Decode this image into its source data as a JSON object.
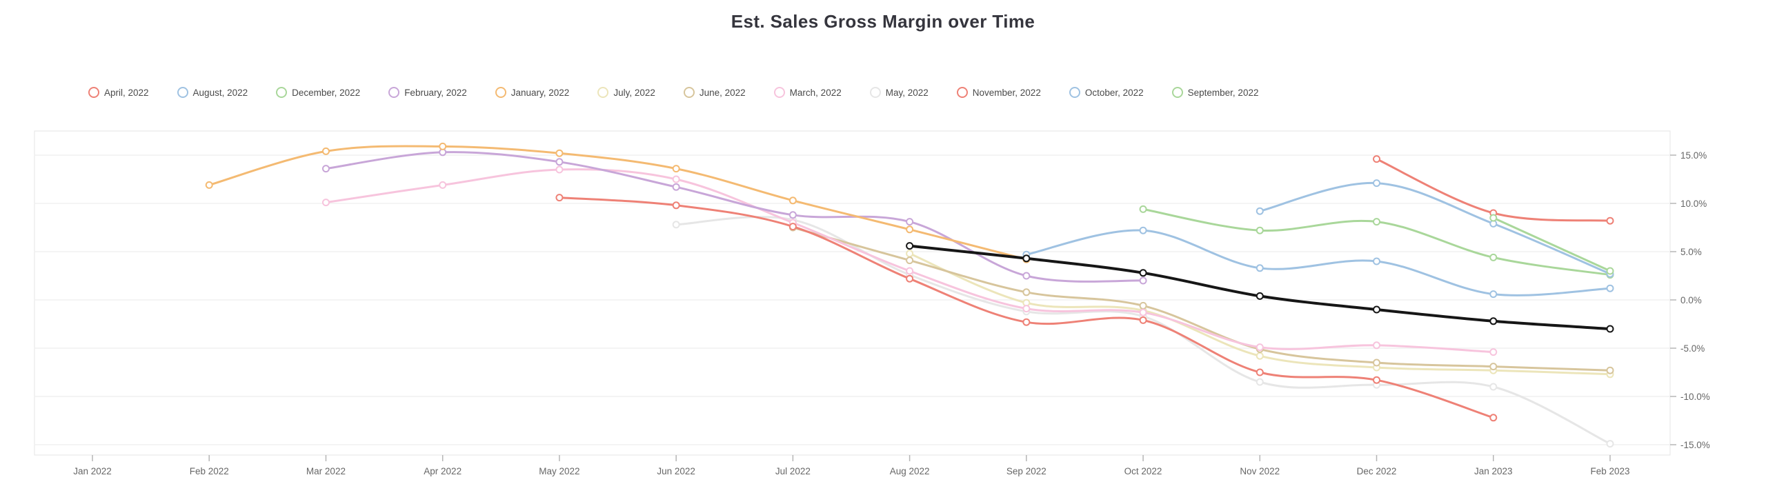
{
  "chart_data": {
    "type": "line",
    "title": "Est. Sales Gross Margin over Time",
    "xlabel": "",
    "ylabel": "",
    "x_categories": [
      "Jan 2022",
      "Feb 2022",
      "Mar 2022",
      "Apr 2022",
      "May 2022",
      "Jun 2022",
      "Jul 2022",
      "Aug 2022",
      "Sep 2022",
      "Oct 2022",
      "Nov 2022",
      "Dec 2022",
      "Jan 2023",
      "Feb 2023"
    ],
    "y_axis": {
      "side": "right",
      "unit": "%",
      "min": -15,
      "max": 15,
      "gridlines": [
        {
          "value": 15,
          "label": "15.0%"
        },
        {
          "value": 10,
          "label": "10.0%"
        },
        {
          "value": 5,
          "label": "5.0%"
        },
        {
          "value": 0,
          "label": "0.0%"
        },
        {
          "value": -5,
          "label": "-5.0%"
        },
        {
          "value": -10,
          "label": "-10.0%"
        },
        {
          "value": -15,
          "label": "-15.0%"
        }
      ]
    },
    "legend_position": "top-left",
    "grid": true,
    "legend": [
      {
        "label": "April, 2022",
        "color": "#ee8176"
      },
      {
        "label": "August, 2022",
        "color": "#9fc2e2"
      },
      {
        "label": "December, 2022",
        "color": "#a9d79a"
      },
      {
        "label": "February, 2022",
        "color": "#c8a6d8"
      },
      {
        "label": "January, 2022",
        "color": "#f4ba72"
      },
      {
        "label": "July, 2022",
        "color": "#ece5ba"
      },
      {
        "label": "June, 2022",
        "color": "#d7c59c"
      },
      {
        "label": "March, 2022",
        "color": "#f7c4dd"
      },
      {
        "label": "May, 2022",
        "color": "#e6e6e6"
      },
      {
        "label": "November, 2022",
        "color": "#ee8176"
      },
      {
        "label": "October, 2022",
        "color": "#9fc2e2"
      },
      {
        "label": "September, 2022",
        "color": "#a9d79a"
      }
    ],
    "series": [
      {
        "name": "May, 2022",
        "color": "#e6e6e6",
        "width": 3,
        "values": [
          null,
          null,
          null,
          null,
          null,
          7.8,
          8.3,
          2.6,
          -1.2,
          -1.7,
          -8.5,
          -8.8,
          -9.0,
          -14.9
        ]
      },
      {
        "name": "July, 2022",
        "color": "#ece5ba",
        "width": 3,
        "values": [
          null,
          null,
          null,
          null,
          null,
          null,
          null,
          4.8,
          -0.3,
          -1.1,
          -5.8,
          -7.0,
          -7.3,
          -7.7
        ]
      },
      {
        "name": "June, 2022",
        "color": "#d7c59c",
        "width": 3,
        "values": [
          null,
          null,
          null,
          null,
          null,
          null,
          7.5,
          4.1,
          0.8,
          -0.6,
          -5.1,
          -6.5,
          -6.9,
          -7.3
        ]
      },
      {
        "name": "March, 2022",
        "color": "#f7c4dd",
        "width": 3,
        "values": [
          null,
          null,
          10.1,
          11.9,
          13.5,
          12.5,
          8.0,
          3.0,
          -0.9,
          -1.3,
          -4.9,
          -4.7,
          -5.4,
          null
        ]
      },
      {
        "name": "February, 2022",
        "color": "#c8a6d8",
        "width": 3,
        "values": [
          null,
          null,
          13.6,
          15.3,
          14.3,
          11.7,
          8.8,
          8.1,
          2.5,
          2.0,
          null,
          null,
          null,
          null
        ]
      },
      {
        "name": "January, 2022",
        "color": "#f4ba72",
        "width": 3,
        "values": [
          null,
          11.9,
          15.4,
          15.9,
          15.2,
          13.6,
          10.3,
          7.3,
          4.2,
          null,
          null,
          null,
          null,
          null
        ]
      },
      {
        "name": "April, 2022",
        "color": "#ee8176",
        "width": 3,
        "values": [
          null,
          null,
          null,
          null,
          10.6,
          9.8,
          7.6,
          2.2,
          -2.3,
          -2.1,
          -7.5,
          -8.3,
          -12.2,
          null
        ]
      },
      {
        "name": "August, 2022",
        "color": "#9fc2e2",
        "width": 3,
        "values": [
          null,
          null,
          null,
          null,
          null,
          null,
          null,
          null,
          4.7,
          7.2,
          3.3,
          4.0,
          0.6,
          1.2
        ]
      },
      {
        "name": "September, 2022",
        "color": "#a9d79a",
        "width": 3,
        "values": [
          null,
          null,
          null,
          null,
          null,
          null,
          null,
          null,
          null,
          9.4,
          7.2,
          8.1,
          4.4,
          2.6
        ]
      },
      {
        "name": "October, 2022",
        "color": "#9fc2e2",
        "width": 3,
        "values": [
          null,
          null,
          null,
          null,
          null,
          null,
          null,
          null,
          null,
          null,
          9.2,
          12.1,
          7.9,
          2.7
        ]
      },
      {
        "name": "November, 2022",
        "color": "#ee8176",
        "width": 3,
        "values": [
          null,
          null,
          null,
          null,
          null,
          null,
          null,
          null,
          null,
          null,
          null,
          14.6,
          9.0,
          8.2
        ]
      },
      {
        "name": "December, 2022",
        "color": "#a9d79a",
        "width": 3,
        "values": [
          null,
          null,
          null,
          null,
          null,
          null,
          null,
          null,
          null,
          null,
          null,
          null,
          8.5,
          3.0
        ]
      },
      {
        "name": "",
        "color": "#161616",
        "width": 4,
        "values": [
          null,
          null,
          null,
          null,
          null,
          null,
          null,
          5.6,
          4.3,
          2.8,
          0.4,
          -1.0,
          -2.2,
          -3.0
        ]
      }
    ]
  }
}
